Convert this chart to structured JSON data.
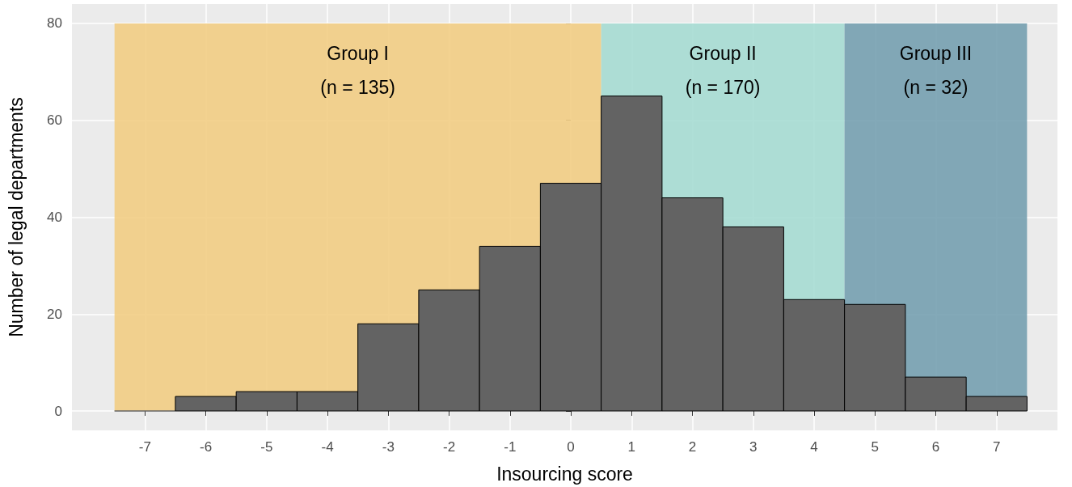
{
  "chart_data": {
    "type": "histogram",
    "xlabel": "Insourcing score",
    "ylabel": "Number of legal departments",
    "bins": [
      -7.5,
      -6.5,
      -5.5,
      -4.5,
      -3.5,
      -2.5,
      -1.5,
      -0.5,
      0.5,
      1.5,
      2.5,
      3.5,
      4.5,
      5.5,
      6.5,
      7.5
    ],
    "values": [
      0,
      3,
      4,
      4,
      18,
      25,
      34,
      47,
      65,
      44,
      38,
      23,
      22,
      7,
      3
    ],
    "color": "#636363",
    "xlim": [
      -8.2,
      8
    ],
    "xticks": [
      -7,
      -6,
      -5,
      -4,
      -3,
      -2,
      -1,
      0,
      1,
      2,
      3,
      4,
      5,
      6,
      7
    ],
    "ylim": [
      -4,
      84
    ],
    "yticks": [
      0,
      20,
      40,
      60,
      80
    ],
    "grid": true,
    "bands": [
      {
        "axis": "x",
        "from": -7.5,
        "to": 0.5,
        "label": "Group I\n(n = 135)",
        "color": "#f2cd84"
      },
      {
        "axis": "x",
        "from": 0.5,
        "to": 4.5,
        "label": "Group II\n(n = 170)",
        "color": "#a6dbd3"
      },
      {
        "axis": "x",
        "from": 4.5,
        "to": 7.5,
        "label": "Group III\n(n = 32)",
        "color": "#76a0b0"
      }
    ]
  }
}
